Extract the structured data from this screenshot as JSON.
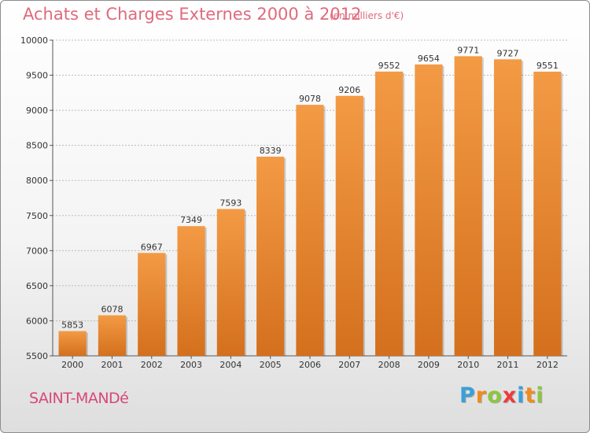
{
  "title": "Achats et Charges Externes 2000 à 2012",
  "subtitle": "(en milliers d'€)",
  "city": "SAINT-MANDé",
  "logo": {
    "letters": [
      "P",
      "r",
      "o",
      "x",
      "i",
      "t",
      "i"
    ],
    "colors": [
      "#3aa0d8",
      "#f08b1e",
      "#8cc63f",
      "#ee3b3b",
      "#3aa0d8",
      "#f08b1e",
      "#8cc63f"
    ]
  },
  "colors": {
    "bar": "#f39a45",
    "bar_dark": "#d4701d",
    "grid": "#bbbbbb"
  },
  "chart_data": {
    "type": "bar",
    "categories": [
      "2000",
      "2001",
      "2002",
      "2003",
      "2004",
      "2005",
      "2006",
      "2007",
      "2008",
      "2009",
      "2010",
      "2011",
      "2012"
    ],
    "values": [
      5853,
      6078,
      6967,
      7349,
      7593,
      8339,
      9078,
      9206,
      9552,
      9654,
      9771,
      9727,
      9551
    ],
    "ylim": [
      5500,
      10000
    ],
    "yticks": [
      5500,
      6000,
      6500,
      7000,
      7500,
      8000,
      8500,
      9000,
      9500,
      10000
    ],
    "grid": true,
    "data_labels": true,
    "xlabel": "",
    "ylabel": ""
  }
}
